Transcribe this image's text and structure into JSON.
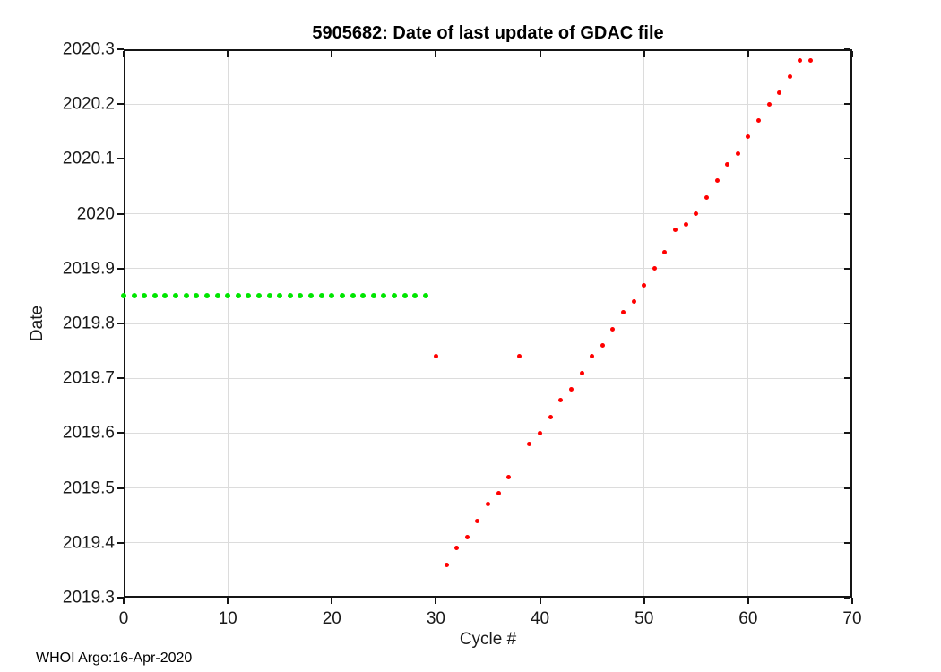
{
  "title": "5905682: Date of last update of GDAC file",
  "footer": "WHOI Argo:16-Apr-2020",
  "chart_data": {
    "type": "scatter",
    "title": "5905682: Date of last update of GDAC file",
    "xlabel": "Cycle #",
    "ylabel": "Date",
    "xlim": [
      0,
      70
    ],
    "ylim": [
      2019.3,
      2020.3
    ],
    "grid": true,
    "legend": "none",
    "x_ticks": [
      0,
      10,
      20,
      30,
      40,
      50,
      60,
      70
    ],
    "x_tick_labels": [
      "0",
      "10",
      "20",
      "30",
      "40",
      "50",
      "60",
      "70"
    ],
    "y_ticks": [
      2019.3,
      2019.4,
      2019.5,
      2019.6,
      2019.7,
      2019.8,
      2019.9,
      2020,
      2020.1,
      2020.2,
      2020.3
    ],
    "y_tick_labels": [
      "2019.3",
      "2019.4",
      "2019.5",
      "2019.6",
      "2019.7",
      "2019.8",
      "2019.9",
      "2020",
      "2020.1",
      "2020.2",
      "2020.3"
    ],
    "series": [
      {
        "name": "green-dotted-line",
        "color": "#00e600",
        "marker": "dot",
        "marker_size": 6,
        "x": [
          0,
          1,
          2,
          3,
          4,
          5,
          6,
          7,
          8,
          9,
          10,
          11,
          12,
          13,
          14,
          15,
          16,
          17,
          18,
          19,
          20,
          21,
          22,
          23,
          24,
          25,
          26,
          27,
          28,
          29
        ],
        "y": [
          2019.85,
          2019.85,
          2019.85,
          2019.85,
          2019.85,
          2019.85,
          2019.85,
          2019.85,
          2019.85,
          2019.85,
          2019.85,
          2019.85,
          2019.85,
          2019.85,
          2019.85,
          2019.85,
          2019.85,
          2019.85,
          2019.85,
          2019.85,
          2019.85,
          2019.85,
          2019.85,
          2019.85,
          2019.85,
          2019.85,
          2019.85,
          2019.85,
          2019.85,
          2019.85
        ]
      },
      {
        "name": "red-points",
        "color": "#ff0000",
        "marker": "dot",
        "marker_size": 5,
        "x": [
          30,
          31,
          32,
          33,
          34,
          35,
          36,
          37,
          38,
          39,
          40,
          41,
          42,
          43,
          44,
          45,
          46,
          47,
          48,
          49,
          50,
          51,
          52,
          53,
          54,
          55,
          56,
          57,
          58,
          59,
          60,
          61,
          62,
          63,
          64,
          65,
          66
        ],
        "y": [
          2019.74,
          2019.36,
          2019.39,
          2019.41,
          2019.44,
          2019.47,
          2019.49,
          2019.52,
          2019.74,
          2019.58,
          2019.6,
          2019.63,
          2019.66,
          2019.68,
          2019.71,
          2019.74,
          2019.76,
          2019.79,
          2019.82,
          2019.84,
          2019.87,
          2019.9,
          2019.93,
          2019.97,
          2019.98,
          2020.0,
          2020.03,
          2020.06,
          2020.09,
          2020.11,
          2020.14,
          2020.17,
          2020.2,
          2020.22,
          2020.25,
          2020.28,
          2020.28
        ]
      }
    ]
  }
}
